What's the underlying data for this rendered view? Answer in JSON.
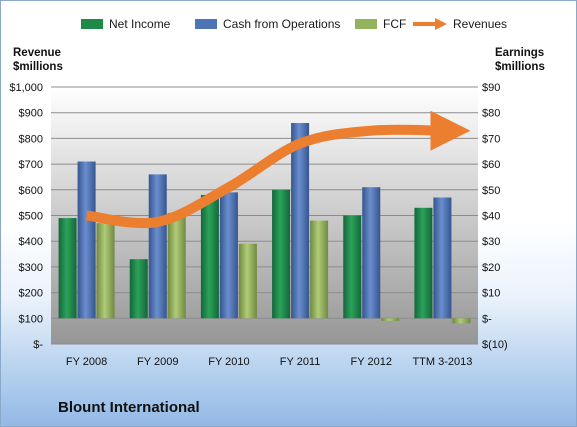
{
  "legend": {
    "net_income": "Net Income",
    "cash_from_operations": "Cash from Operations",
    "fcf": "FCF",
    "revenues": "Revenues"
  },
  "left_axis_label": {
    "line1": "Revenue",
    "line2": "$millions"
  },
  "right_axis_label": {
    "line1": "Earnings",
    "line2": "$millions"
  },
  "company_name": "Blount International",
  "colors": {
    "net_income": "#1f8a45",
    "cash_from_operations": "#4f73b7",
    "fcf": "#93b35c",
    "revenues": "#ec7e2f"
  },
  "chart_data": {
    "type": "bar",
    "categories": [
      "FY 2008",
      "FY 2009",
      "FY 2010",
      "FY 2011",
      "FY 2012",
      "TTM 3-2013"
    ],
    "series": [
      {
        "name": "Net Income",
        "axis": "right",
        "values": [
          39,
          23,
          48,
          50,
          40,
          43
        ]
      },
      {
        "name": "Cash from Operations",
        "axis": "right",
        "values": [
          61,
          56,
          49,
          76,
          51,
          47
        ]
      },
      {
        "name": "FCF",
        "axis": "right",
        "values": [
          37,
          41,
          29,
          38,
          -1,
          -2
        ]
      },
      {
        "name": "Revenues",
        "type": "line",
        "axis": "left",
        "values": [
          500,
          475,
          610,
          780,
          830,
          830
        ]
      }
    ],
    "left_axis": {
      "label": "Revenue $millions",
      "range": [
        0,
        1000
      ],
      "ticks": [
        "$-",
        "$100",
        "$200",
        "$300",
        "$400",
        "$500",
        "$600",
        "$700",
        "$800",
        "$900",
        "$1,000"
      ]
    },
    "right_axis": {
      "label": "Earnings $millions",
      "range": [
        -10,
        90
      ],
      "ticks": [
        "$(10)",
        "$-",
        "$10",
        "$20",
        "$30",
        "$40",
        "$50",
        "$60",
        "$70",
        "$80",
        "$90"
      ]
    },
    "grid": true,
    "legend_position": "top"
  }
}
